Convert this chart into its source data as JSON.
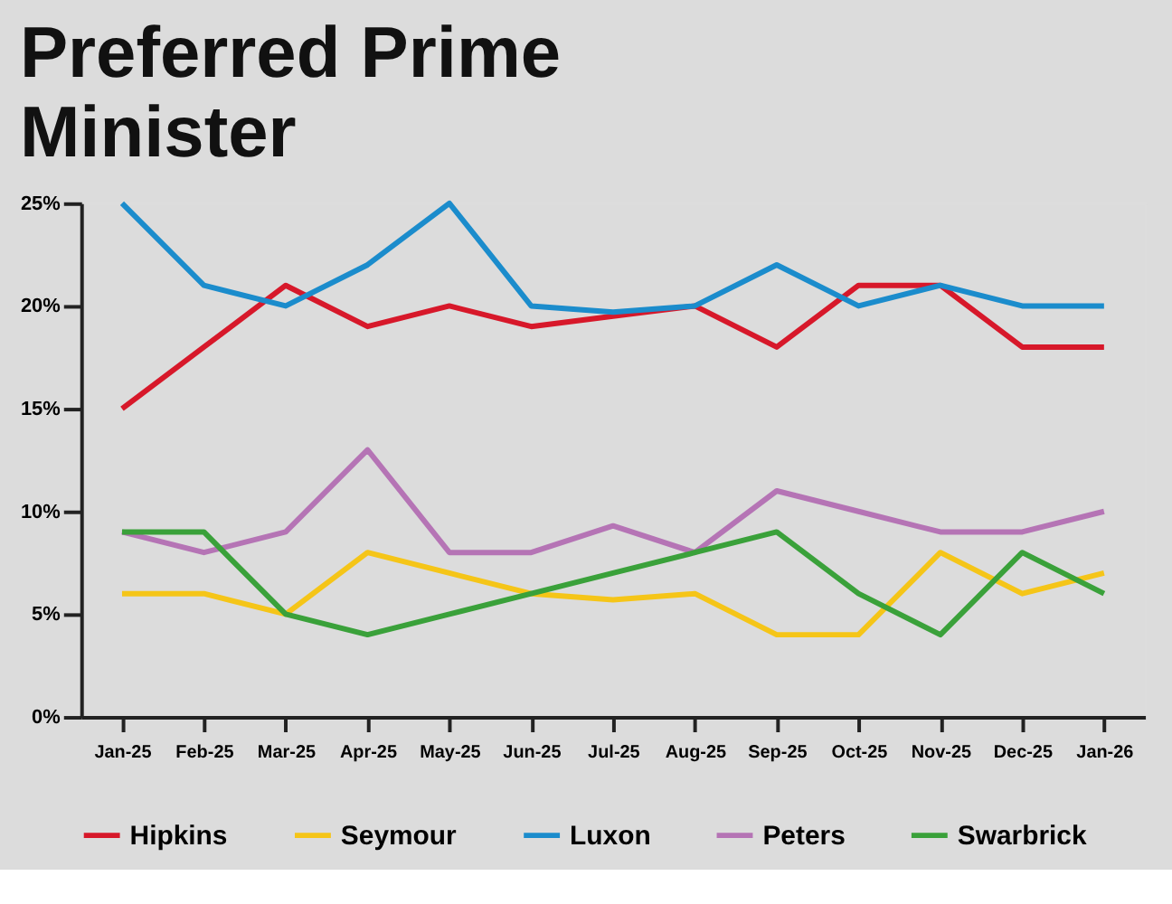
{
  "chart_data": {
    "type": "line",
    "title": "Preferred Prime Minister",
    "categories": [
      "Jan-25",
      "Feb-25",
      "Mar-25",
      "Apr-25",
      "May-25",
      "Jun-25",
      "Jul-25",
      "Aug-25",
      "Sep-25",
      "Oct-25",
      "Nov-25",
      "Dec-25",
      "Jan-26"
    ],
    "series": [
      {
        "name": "Hipkins",
        "color": "#d7182a",
        "values": [
          15,
          18,
          21,
          19,
          20,
          19,
          19.5,
          20,
          18,
          21,
          21,
          18,
          18
        ]
      },
      {
        "name": "Seymour",
        "color": "#f5c518",
        "values": [
          6,
          6,
          5,
          8,
          7,
          6,
          5.7,
          6,
          4,
          4,
          8,
          6,
          7
        ]
      },
      {
        "name": "Luxon",
        "color": "#1b8ccc",
        "values": [
          25,
          21,
          20,
          22,
          25,
          20,
          19.7,
          20,
          22,
          20,
          21,
          20,
          20
        ]
      },
      {
        "name": "Peters",
        "color": "#b574b5",
        "values": [
          9,
          8,
          9,
          13,
          8,
          8,
          9.3,
          8,
          11,
          10,
          9,
          9,
          10
        ]
      },
      {
        "name": "Swarbrick",
        "color": "#3aa13a",
        "values": [
          9,
          9,
          5,
          4,
          5,
          6,
          7,
          8,
          9,
          6,
          4,
          8,
          6
        ]
      }
    ],
    "ylim": [
      0,
      25
    ],
    "yticks": [
      {
        "value": 0,
        "label": "0%"
      },
      {
        "value": 5,
        "label": "5%"
      },
      {
        "value": 10,
        "label": "10%"
      },
      {
        "value": 15,
        "label": "15%"
      },
      {
        "value": 20,
        "label": "20%"
      },
      {
        "value": 25,
        "label": "25%"
      }
    ],
    "legend": "bottom",
    "marker": "none",
    "line_style": "solid"
  }
}
